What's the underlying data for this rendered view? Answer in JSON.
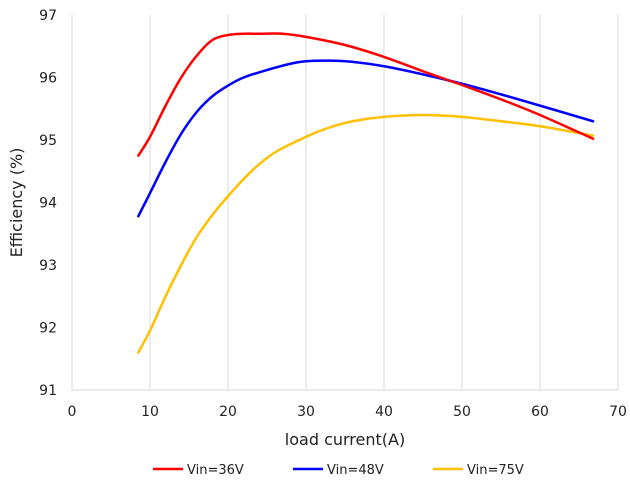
{
  "chart_data": {
    "type": "line",
    "xlabel": "load current(A)",
    "ylabel": "Efficiency (%)",
    "xlim": [
      0,
      70
    ],
    "ylim": [
      91,
      97
    ],
    "xticks": [
      0,
      10,
      20,
      30,
      40,
      50,
      60,
      70
    ],
    "yticks": [
      91,
      92,
      93,
      94,
      95,
      96,
      97
    ],
    "grid": "vertical",
    "legend_position": "bottom",
    "series": [
      {
        "name": "Vin=36V",
        "color": "#ff0000",
        "x": [
          8.5,
          10,
          12,
          14,
          16,
          18,
          20,
          22,
          24,
          27,
          30,
          35,
          40,
          45,
          50,
          55,
          60,
          66.8
        ],
        "y": [
          94.75,
          95.05,
          95.55,
          96.0,
          96.35,
          96.6,
          96.68,
          96.7,
          96.7,
          96.7,
          96.65,
          96.52,
          96.33,
          96.1,
          95.88,
          95.65,
          95.4,
          95.02
        ]
      },
      {
        "name": "Vin=48V",
        "color": "#0000ff",
        "x": [
          8.5,
          10,
          12,
          14,
          16,
          18,
          20,
          22,
          25,
          28,
          30,
          33,
          36,
          40,
          45,
          50,
          55,
          60,
          66.8
        ],
        "y": [
          93.78,
          94.15,
          94.65,
          95.1,
          95.45,
          95.7,
          95.87,
          96.0,
          96.12,
          96.22,
          96.26,
          96.27,
          96.25,
          96.18,
          96.05,
          95.9,
          95.73,
          95.55,
          95.3
        ]
      },
      {
        "name": "Vin=75V",
        "color": "#ffc000",
        "x": [
          8.5,
          10,
          12,
          14,
          16,
          18,
          20,
          23,
          26,
          30,
          33,
          36,
          40,
          45,
          50,
          55,
          60,
          66.8
        ],
        "y": [
          91.6,
          91.95,
          92.5,
          93.0,
          93.45,
          93.8,
          94.1,
          94.5,
          94.8,
          95.05,
          95.2,
          95.3,
          95.37,
          95.4,
          95.37,
          95.3,
          95.22,
          95.07
        ]
      }
    ]
  }
}
